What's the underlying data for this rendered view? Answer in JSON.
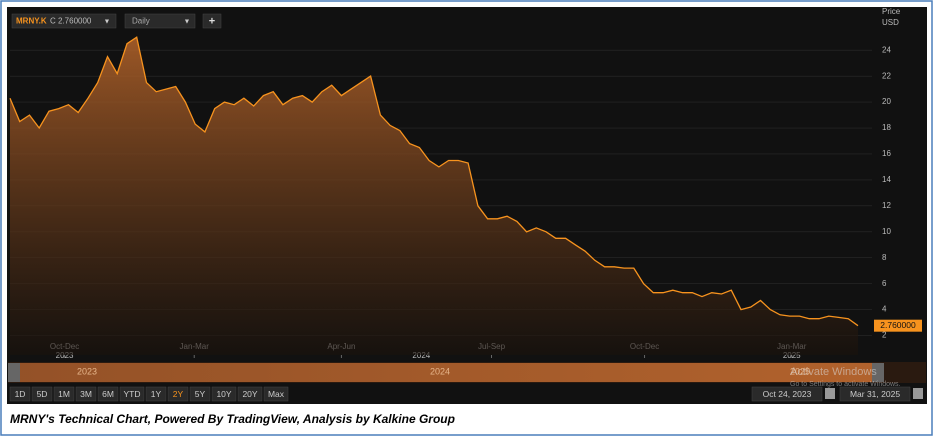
{
  "header": {
    "symbol": "MRNY.K",
    "close": "C 2.760000",
    "interval": "Daily",
    "add": "+"
  },
  "chart_data": {
    "type": "line",
    "color": "#f7931e",
    "axis_title": "Price",
    "axis_unit": "USD",
    "values": [
      20.3,
      18.5,
      19.0,
      18.0,
      19.3,
      19.5,
      19.8,
      19.2,
      20.3,
      21.5,
      23.5,
      22.2,
      24.5,
      25.0,
      21.5,
      20.8,
      21.0,
      21.2,
      20.0,
      18.3,
      17.7,
      19.5,
      20.0,
      19.8,
      20.3,
      19.7,
      20.5,
      20.8,
      19.8,
      20.3,
      20.5,
      20.0,
      20.8,
      21.3,
      20.5,
      21.0,
      21.5,
      22.0,
      19.0,
      18.2,
      17.8,
      16.8,
      16.5,
      15.5,
      15.0,
      15.5,
      15.5,
      15.3,
      12.0,
      11.0,
      11.0,
      11.2,
      10.8,
      10.0,
      10.3,
      10.0,
      9.5,
      9.5,
      9.0,
      8.5,
      7.8,
      7.3,
      7.3,
      7.2,
      7.2,
      6.0,
      5.3,
      5.3,
      5.5,
      5.3,
      5.3,
      5.0,
      5.3,
      5.2,
      5.5,
      4.0,
      4.2,
      4.7,
      4.0,
      3.6,
      3.5,
      3.5,
      3.3,
      3.3,
      3.5,
      3.4,
      3.3,
      2.76
    ],
    "last_price_label": "2.760000",
    "ylim": [
      0.5,
      27.1
    ],
    "yticks": [
      2,
      4,
      6,
      8,
      10,
      12,
      14,
      16,
      18,
      20,
      22,
      24
    ],
    "xlim": [
      0,
      87
    ],
    "xticks": [
      {
        "value": 5.6,
        "label": "Oct-Dec"
      },
      {
        "value": 18.9,
        "label": "Jan-Mar"
      },
      {
        "value": 34,
        "label": "Apr-Jun"
      },
      {
        "value": 49.4,
        "label": "Jul-Sep"
      },
      {
        "value": 65.1,
        "label": "Oct-Dec"
      },
      {
        "value": 80.2,
        "label": "Jan-Mar"
      }
    ],
    "year_ticks": [
      {
        "value": 5.6,
        "label": "2023"
      },
      {
        "value": 42.2,
        "label": "2024"
      },
      {
        "value": 80.2,
        "label": "2025"
      }
    ],
    "grid": true
  },
  "navigator": {
    "years": [
      "2023",
      "2024",
      "2025"
    ]
  },
  "watermark": {
    "title": "Activate Windows",
    "text": "Go to Settings to activate Windows."
  },
  "ranges": [
    "1D",
    "5D",
    "1M",
    "3M",
    "6M",
    "YTD",
    "1Y",
    "2Y",
    "5Y",
    "10Y",
    "20Y",
    "Max"
  ],
  "active_range": "2Y",
  "date_from": "Oct 24, 2023",
  "date_to": "Mar 31, 2025",
  "caption": "MRNY's Technical Chart, Powered By TradingView, Analysis by Kalkine Group"
}
